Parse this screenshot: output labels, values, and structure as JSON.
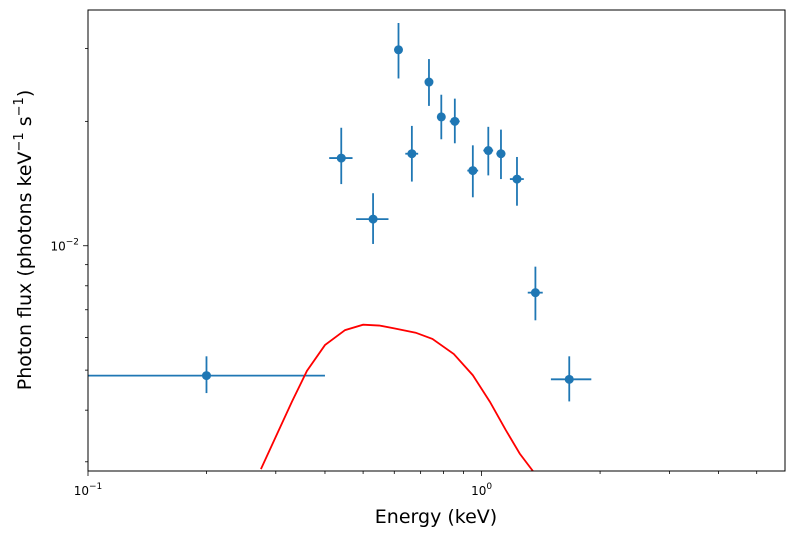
{
  "chart_data": {
    "type": "scatter",
    "title": "",
    "xlabel": "Energy (keV)",
    "ylabel_main": "Photon flux (photons keV",
    "ylabel_sup1": "−1",
    "ylabel_mid": " s",
    "ylabel_sup2": "−1",
    "ylabel_end": ")",
    "xscale": "log",
    "yscale": "log",
    "xlim": [
      0.1,
      5.9
    ],
    "ylim": [
      0.00285,
      0.0372
    ],
    "x_tick_labels": [
      {
        "value": 0.1,
        "base": "10",
        "exp": "−1"
      },
      {
        "value": 1,
        "base": "10",
        "exp": "0"
      }
    ],
    "y_tick_labels": [
      {
        "value": 0.01,
        "base": "10",
        "exp": "−2"
      }
    ],
    "grid": false,
    "series": [
      {
        "kind": "errorbar",
        "color": "#1f77b4",
        "points": [
          {
            "x": 0.2,
            "xerr": [
              0.1,
              0.4
            ],
            "y": 0.00485,
            "yerr": [
              0.0044,
              0.0054
            ]
          },
          {
            "x": 0.44,
            "xerr": [
              0.41,
              0.47
            ],
            "y": 0.0163,
            "yerr": [
              0.0141,
              0.0193
            ]
          },
          {
            "x": 0.53,
            "xerr": [
              0.48,
              0.58
            ],
            "y": 0.0116,
            "yerr": [
              0.0101,
              0.0134
            ]
          },
          {
            "x": 0.615,
            "xerr": [
              0.605,
              0.625
            ],
            "y": 0.0298,
            "yerr": [
              0.0254,
              0.0346
            ]
          },
          {
            "x": 0.665,
            "xerr": [
              0.64,
              0.69
            ],
            "y": 0.0167,
            "yerr": [
              0.0143,
              0.0195
            ]
          },
          {
            "x": 0.735,
            "xerr": [
              0.725,
              0.745
            ],
            "y": 0.0249,
            "yerr": [
              0.0218,
              0.0283
            ]
          },
          {
            "x": 0.79,
            "xerr": [
              0.775,
              0.805
            ],
            "y": 0.0205,
            "yerr": [
              0.0181,
              0.0232
            ]
          },
          {
            "x": 0.855,
            "xerr": [
              0.83,
              0.88
            ],
            "y": 0.02,
            "yerr": [
              0.0177,
              0.0227
            ]
          },
          {
            "x": 0.95,
            "xerr": [
              0.92,
              0.98
            ],
            "y": 0.0152,
            "yerr": [
              0.0131,
              0.0175
            ]
          },
          {
            "x": 1.04,
            "xerr": [
              1.01,
              1.07
            ],
            "y": 0.017,
            "yerr": [
              0.0148,
              0.0194
            ]
          },
          {
            "x": 1.12,
            "xerr": [
              1.09,
              1.15
            ],
            "y": 0.0167,
            "yerr": [
              0.0145,
              0.0191
            ]
          },
          {
            "x": 1.23,
            "xerr": [
              1.18,
              1.28
            ],
            "y": 0.0145,
            "yerr": [
              0.0125,
              0.0164
            ]
          },
          {
            "x": 1.37,
            "xerr": [
              1.31,
              1.43
            ],
            "y": 0.0077,
            "yerr": [
              0.0066,
              0.0089
            ]
          },
          {
            "x": 1.67,
            "xerr": [
              1.5,
              1.9
            ],
            "y": 0.00475,
            "yerr": [
              0.0042,
              0.0054
            ]
          }
        ]
      },
      {
        "kind": "line",
        "color": "#ff0000",
        "x": [
          0.275,
          0.3,
          0.33,
          0.36,
          0.4,
          0.45,
          0.5,
          0.55,
          0.6,
          0.68,
          0.75,
          0.85,
          0.95,
          1.05,
          1.15,
          1.25,
          1.35
        ],
        "y": [
          0.00288,
          0.00345,
          0.0042,
          0.00498,
          0.00575,
          0.00625,
          0.00644,
          0.00641,
          0.00631,
          0.00616,
          0.00595,
          0.00547,
          0.00486,
          0.00419,
          0.00359,
          0.00314,
          0.00285
        ]
      }
    ]
  }
}
